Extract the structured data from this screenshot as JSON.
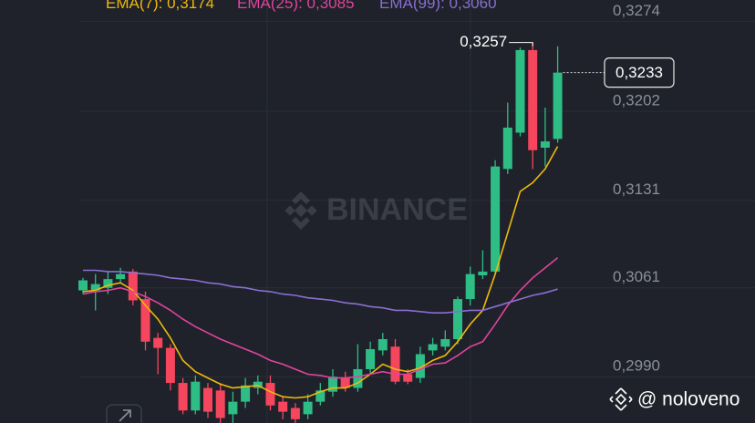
{
  "chart_data": {
    "type": "candlestick",
    "ylim": [
      0.2953,
      0.3291
    ],
    "yticks": [
      {
        "value": 0.299,
        "label": "0,2990"
      },
      {
        "value": 0.3061,
        "label": "0,3061"
      },
      {
        "value": 0.3131,
        "label": "0,3131"
      },
      {
        "value": 0.3202,
        "label": "0,3202"
      },
      {
        "value": 0.3274,
        "label": "0,3274"
      }
    ],
    "grid": true,
    "up_color": "#2ebd85",
    "down_color": "#f6465d",
    "open": [
      0.3059,
      0.3059,
      0.3061,
      0.3068,
      0.3074,
      0.3052,
      0.3021,
      0.3013,
      0.2985,
      0.2963,
      0.2981,
      0.2979,
      0.296,
      0.297,
      0.2981,
      0.2985,
      0.297,
      0.2965,
      0.296,
      0.297,
      0.2978,
      0.2989,
      0.2981,
      0.2996,
      0.3011,
      0.3014,
      0.2992,
      0.2989,
      0.3011,
      0.3014,
      0.302,
      0.3052,
      0.3071,
      0.3074,
      0.3156,
      0.3185,
      0.3251,
      0.3173,
      0.318
    ],
    "high": [
      0.3069,
      0.3072,
      0.3074,
      0.3077,
      0.3076,
      0.3058,
      0.3025,
      0.3016,
      0.2989,
      0.2991,
      0.2985,
      0.2985,
      0.2978,
      0.2989,
      0.2991,
      0.2991,
      0.2974,
      0.2969,
      0.2976,
      0.2985,
      0.2996,
      0.2994,
      0.3016,
      0.3018,
      0.3025,
      0.302,
      0.2996,
      0.3014,
      0.3021,
      0.3027,
      0.3054,
      0.3078,
      0.3091,
      0.3163,
      0.3209,
      0.3253,
      0.3257,
      0.3205,
      0.3254
    ],
    "low": [
      0.3056,
      0.3043,
      0.3056,
      0.3065,
      0.3047,
      0.3011,
      0.2992,
      0.2979,
      0.296,
      0.296,
      0.2957,
      0.2953,
      0.2953,
      0.2965,
      0.2976,
      0.2963,
      0.2956,
      0.2953,
      0.2956,
      0.2967,
      0.2974,
      0.2978,
      0.2978,
      0.2992,
      0.3007,
      0.2984,
      0.2984,
      0.2985,
      0.3007,
      0.3011,
      0.3016,
      0.3047,
      0.3068,
      0.3072,
      0.3152,
      0.3182,
      0.3156,
      0.3158,
      0.3177
    ],
    "close": [
      0.3067,
      0.3064,
      0.3068,
      0.3072,
      0.3051,
      0.3018,
      0.3013,
      0.2985,
      0.2963,
      0.2986,
      0.2962,
      0.2957,
      0.297,
      0.2983,
      0.2986,
      0.2967,
      0.2962,
      0.2956,
      0.297,
      0.2979,
      0.299,
      0.2981,
      0.2996,
      0.3012,
      0.302,
      0.2986,
      0.2986,
      0.3008,
      0.3016,
      0.302,
      0.3052,
      0.3072,
      0.3074,
      0.3158,
      0.3189,
      0.3251,
      0.3171,
      0.3178,
      0.3233
    ],
    "series": [
      {
        "name": "EMA(7)",
        "color": "#f0b90b",
        "last_label": "0,3174",
        "values": [
          0.3058,
          0.3059,
          0.3063,
          0.3065,
          0.3059,
          0.3047,
          0.3036,
          0.3021,
          0.3003,
          0.2994,
          0.2989,
          0.2984,
          0.2981,
          0.2982,
          0.2983,
          0.2978,
          0.2974,
          0.2973,
          0.2974,
          0.2978,
          0.2981,
          0.2981,
          0.2985,
          0.2992,
          0.3,
          0.2996,
          0.2994,
          0.2997,
          0.3003,
          0.3007,
          0.3018,
          0.3032,
          0.3043,
          0.3072,
          0.3105,
          0.3138,
          0.3145,
          0.3156,
          0.3174
        ]
      },
      {
        "name": "EMA(25)",
        "color": "#e0449f",
        "last_label": "0,3085",
        "values": [
          0.3056,
          0.3058,
          0.3059,
          0.3061,
          0.3058,
          0.3054,
          0.3049,
          0.3043,
          0.3036,
          0.303,
          0.3025,
          0.302,
          0.3016,
          0.3012,
          0.3008,
          0.3003,
          0.3,
          0.2996,
          0.2992,
          0.2991,
          0.2989,
          0.2989,
          0.299,
          0.2992,
          0.2994,
          0.2992,
          0.2992,
          0.2996,
          0.3,
          0.3001,
          0.3007,
          0.3014,
          0.3018,
          0.3032,
          0.3047,
          0.3059,
          0.3069,
          0.3077,
          0.3085
        ]
      },
      {
        "name": "EMA(99)",
        "color": "#8a6fd1",
        "last_label": "0,3060",
        "values": [
          0.3075,
          0.3075,
          0.3074,
          0.3074,
          0.3073,
          0.3072,
          0.3071,
          0.3069,
          0.3068,
          0.3067,
          0.3065,
          0.3064,
          0.3062,
          0.3061,
          0.3059,
          0.3058,
          0.3056,
          0.3055,
          0.3053,
          0.3052,
          0.3051,
          0.3049,
          0.3048,
          0.3046,
          0.3045,
          0.3043,
          0.3043,
          0.3042,
          0.3041,
          0.3041,
          0.3042,
          0.3043,
          0.3043,
          0.3046,
          0.3049,
          0.3052,
          0.3055,
          0.3057,
          0.306
        ]
      }
    ],
    "max_label": "0,3257",
    "last_label": "0,3233",
    "watermark": "BINANCE",
    "credit": "@ noloveno"
  }
}
